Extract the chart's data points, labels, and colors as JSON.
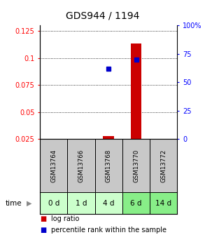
{
  "title": "GDS944 / 1194",
  "samples": [
    "GSM13764",
    "GSM13766",
    "GSM13768",
    "GSM13770",
    "GSM13772"
  ],
  "time_labels": [
    "0 d",
    "1 d",
    "4 d",
    "6 d",
    "14 d"
  ],
  "log_ratio": [
    null,
    null,
    0.028,
    0.113,
    null
  ],
  "percentile_rank_pct": [
    null,
    null,
    62,
    70,
    null
  ],
  "ylim_left": [
    0.025,
    0.13
  ],
  "ylim_right": [
    0,
    100
  ],
  "yticks_left": [
    0.025,
    0.05,
    0.075,
    0.1,
    0.125
  ],
  "yticks_right": [
    0,
    25,
    50,
    75,
    100
  ],
  "ytick_labels_left": [
    "0.025",
    "0.05",
    "0.075",
    "0.1",
    "0.125"
  ],
  "ytick_labels_right": [
    "0",
    "25",
    "50",
    "75",
    "100%"
  ],
  "bar_color": "#cc0000",
  "dot_color": "#0000cc",
  "sample_bg_color": "#c8c8c8",
  "time_bg_colors": [
    "#ccffcc",
    "#ccffcc",
    "#ccffcc",
    "#88ee88",
    "#88ee88"
  ],
  "title_fontsize": 10,
  "tick_fontsize": 7,
  "legend_fontsize": 7
}
